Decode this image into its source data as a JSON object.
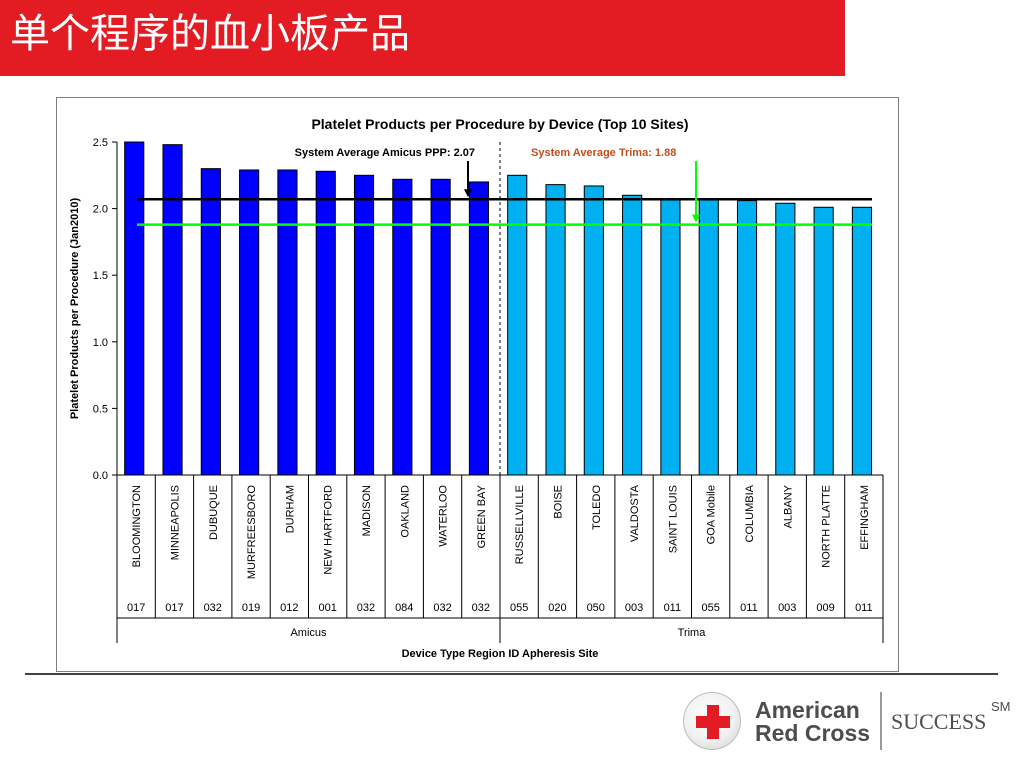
{
  "slide": {
    "title": "单个程序的血小板产品"
  },
  "logo": {
    "org_line1": "American",
    "org_line2": "Red Cross",
    "tagline": "SUCCESS",
    "mark": "SM",
    "brand_red": "#e31c23"
  },
  "chart_data": {
    "type": "bar",
    "title": "Platelet Products per Procedure by Device (Top 10 Sites)",
    "ylabel": "Platelet Products per Procedure (Jan2010)",
    "xlabel": "Device Type Region ID Apheresis Site",
    "ylim": [
      0,
      2.5
    ],
    "yticks": [
      "0.0",
      "0.5",
      "1.0",
      "1.5",
      "2.0",
      "2.5"
    ],
    "categories": [
      "BLOOMINGTON",
      "MINNEAPOLIS",
      "DUBUQUE",
      "MURFREESBORO",
      "DURHAM",
      "NEW HARTFORD",
      "MADISON",
      "OAKLAND",
      "WATERLOO",
      "GREEN BAY",
      "RUSSELLVILLE",
      "BOISE",
      "TOLEDO",
      "VALDOSTA",
      "SAINT LOUIS",
      "GOA Mobile",
      "COLUMBIA",
      "ALBANY",
      "NORTH PLATTE",
      "EFFINGHAM"
    ],
    "region_ids": [
      "017",
      "017",
      "032",
      "019",
      "012",
      "001",
      "032",
      "084",
      "032",
      "032",
      "055",
      "020",
      "050",
      "003",
      "011",
      "055",
      "011",
      "003",
      "009",
      "011"
    ],
    "groups": [
      {
        "name": "Amicus",
        "start": 0,
        "count": 10,
        "color": "#0000ff"
      },
      {
        "name": "Trima",
        "start": 10,
        "count": 10,
        "color": "#00b0f0"
      }
    ],
    "values": [
      2.5,
      2.48,
      2.3,
      2.29,
      2.29,
      2.28,
      2.25,
      2.22,
      2.22,
      2.2,
      2.25,
      2.18,
      2.17,
      2.1,
      2.07,
      2.07,
      2.06,
      2.04,
      2.01,
      2.01
    ],
    "reference_lines": [
      {
        "label": "System Average Amicus PPP: 2.07",
        "value": 2.07,
        "color": "#000000",
        "label_color": "#000000"
      },
      {
        "label": "System Average Trima: 1.88",
        "value": 1.88,
        "color": "#00ff00",
        "label_color": "#c0501c"
      }
    ],
    "grid": false,
    "legend": "none"
  }
}
